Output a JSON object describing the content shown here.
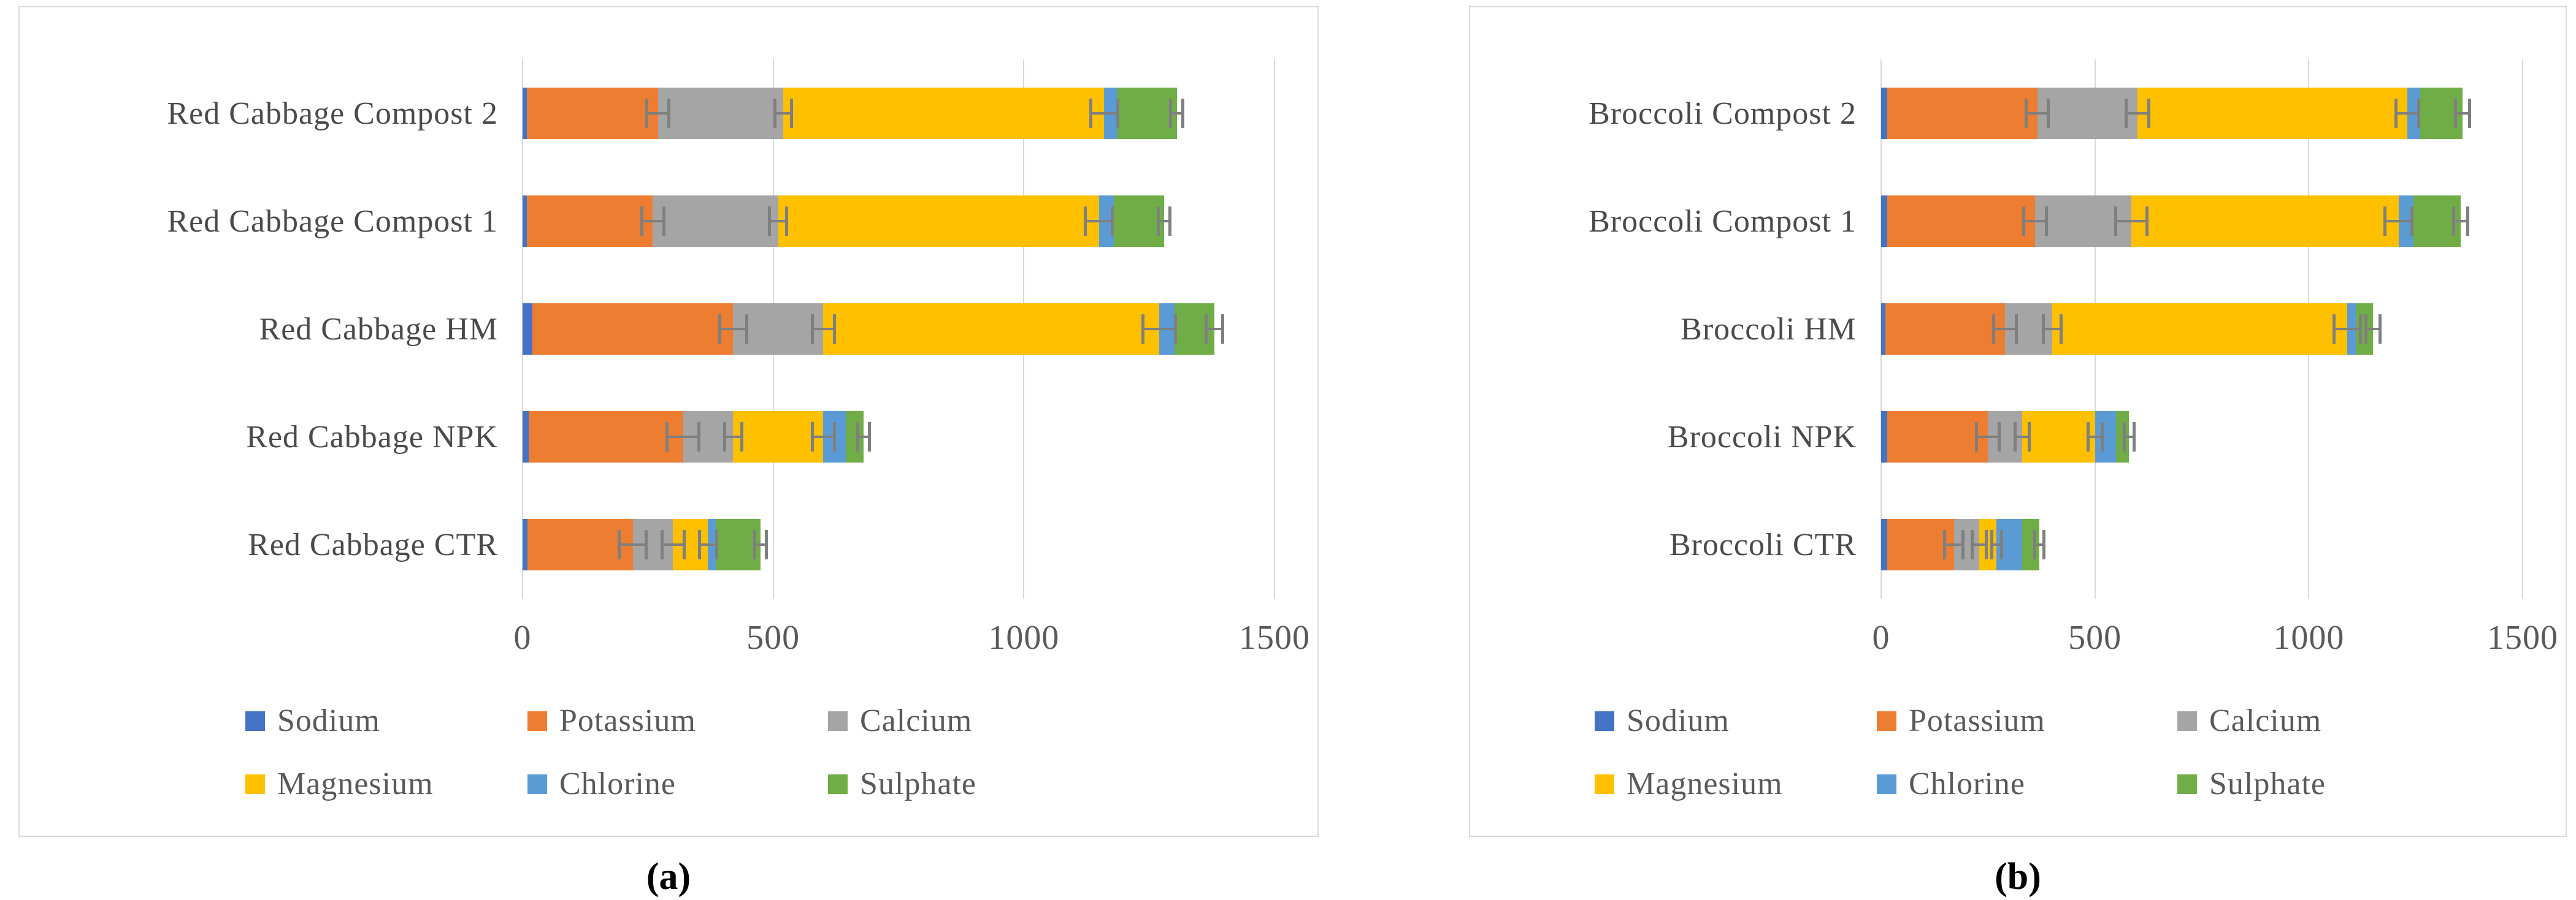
{
  "figure": {
    "panel_a_label": "(a)",
    "panel_b_label": "(b)"
  },
  "colors": {
    "sodium": "#4472C4",
    "potassium": "#ED7D31",
    "calcium": "#A5A5A5",
    "magnesium": "#FFC000",
    "chlorine": "#5B9BD5",
    "sulphate": "#70AD47",
    "error_bar": "#7F7F7F",
    "gridline": "#D9D9D9",
    "axis_text": "#595959"
  },
  "chart_data": [
    {
      "type": "bar",
      "orientation": "horizontal",
      "stacked": true,
      "title": "",
      "xlabel": "",
      "ylabel": "",
      "grid": true,
      "legend_position": "bottom",
      "categories": [
        "Red Cabbage Compost 2",
        "Red Cabbage Compost 1",
        "Red Cabbage HM",
        "Red Cabbage NPK",
        "Red Cabbage CTR"
      ],
      "xlim": [
        0,
        1500
      ],
      "xticks": [
        0,
        500,
        1000,
        1500
      ],
      "xtick_labels": [
        "0",
        "500",
        "1000",
        "1500"
      ],
      "series": [
        {
          "name": "Sodium",
          "color": "#4472C4",
          "values": [
            8,
            8,
            20,
            12,
            10
          ],
          "errors": [
            0,
            0,
            0,
            0,
            0
          ]
        },
        {
          "name": "Potassium",
          "color": "#ED7D31",
          "values": [
            262,
            252,
            400,
            308,
            210
          ],
          "errors": [
            25,
            25,
            30,
            35,
            30
          ]
        },
        {
          "name": "Calcium",
          "color": "#A5A5A5",
          "values": [
            250,
            250,
            180,
            100,
            80
          ],
          "errors": [
            20,
            20,
            25,
            20,
            25
          ]
        },
        {
          "name": "Magnesium",
          "color": "#FFC000",
          "values": [
            640,
            640,
            670,
            180,
            70
          ],
          "errors": [
            30,
            30,
            35,
            25,
            20
          ]
        },
        {
          "name": "Chlorine",
          "color": "#5B9BD5",
          "values": [
            25,
            30,
            30,
            45,
            15
          ],
          "errors": [
            0,
            0,
            0,
            0,
            0
          ]
        },
        {
          "name": "Sulphate",
          "color": "#70AD47",
          "values": [
            120,
            100,
            80,
            35,
            90
          ],
          "errors": [
            15,
            15,
            20,
            15,
            15
          ]
        }
      ]
    },
    {
      "type": "bar",
      "orientation": "horizontal",
      "stacked": true,
      "title": "",
      "xlabel": "",
      "ylabel": "",
      "grid": true,
      "legend_position": "bottom",
      "categories": [
        "Broccoli Compost 2",
        "Broccoli Compost 1",
        "Broccoli HM",
        "Broccoli NPK",
        "Broccoli CTR"
      ],
      "xlim": [
        0,
        1500
      ],
      "xticks": [
        0,
        500,
        1000,
        1500
      ],
      "xtick_labels": [
        "0",
        "500",
        "1000",
        "1500"
      ],
      "series": [
        {
          "name": "Sodium",
          "color": "#4472C4",
          "values": [
            15,
            15,
            10,
            15,
            15
          ],
          "errors": [
            0,
            0,
            0,
            0,
            0
          ]
        },
        {
          "name": "Potassium",
          "color": "#ED7D31",
          "values": [
            350,
            345,
            280,
            235,
            155
          ],
          "errors": [
            30,
            30,
            30,
            30,
            25
          ]
        },
        {
          "name": "Calcium",
          "color": "#A5A5A5",
          "values": [
            235,
            225,
            110,
            80,
            60
          ],
          "errors": [
            30,
            40,
            25,
            20,
            20
          ]
        },
        {
          "name": "Magnesium",
          "color": "#FFC000",
          "values": [
            630,
            625,
            690,
            170,
            40
          ],
          "errors": [
            30,
            35,
            35,
            20,
            15
          ]
        },
        {
          "name": "Chlorine",
          "color": "#5B9BD5",
          "values": [
            30,
            35,
            20,
            50,
            60
          ],
          "errors": [
            0,
            0,
            0,
            0,
            0
          ]
        },
        {
          "name": "Sulphate",
          "color": "#70AD47",
          "values": [
            100,
            110,
            40,
            30,
            40
          ],
          "errors": [
            20,
            20,
            20,
            15,
            15
          ]
        }
      ]
    }
  ]
}
